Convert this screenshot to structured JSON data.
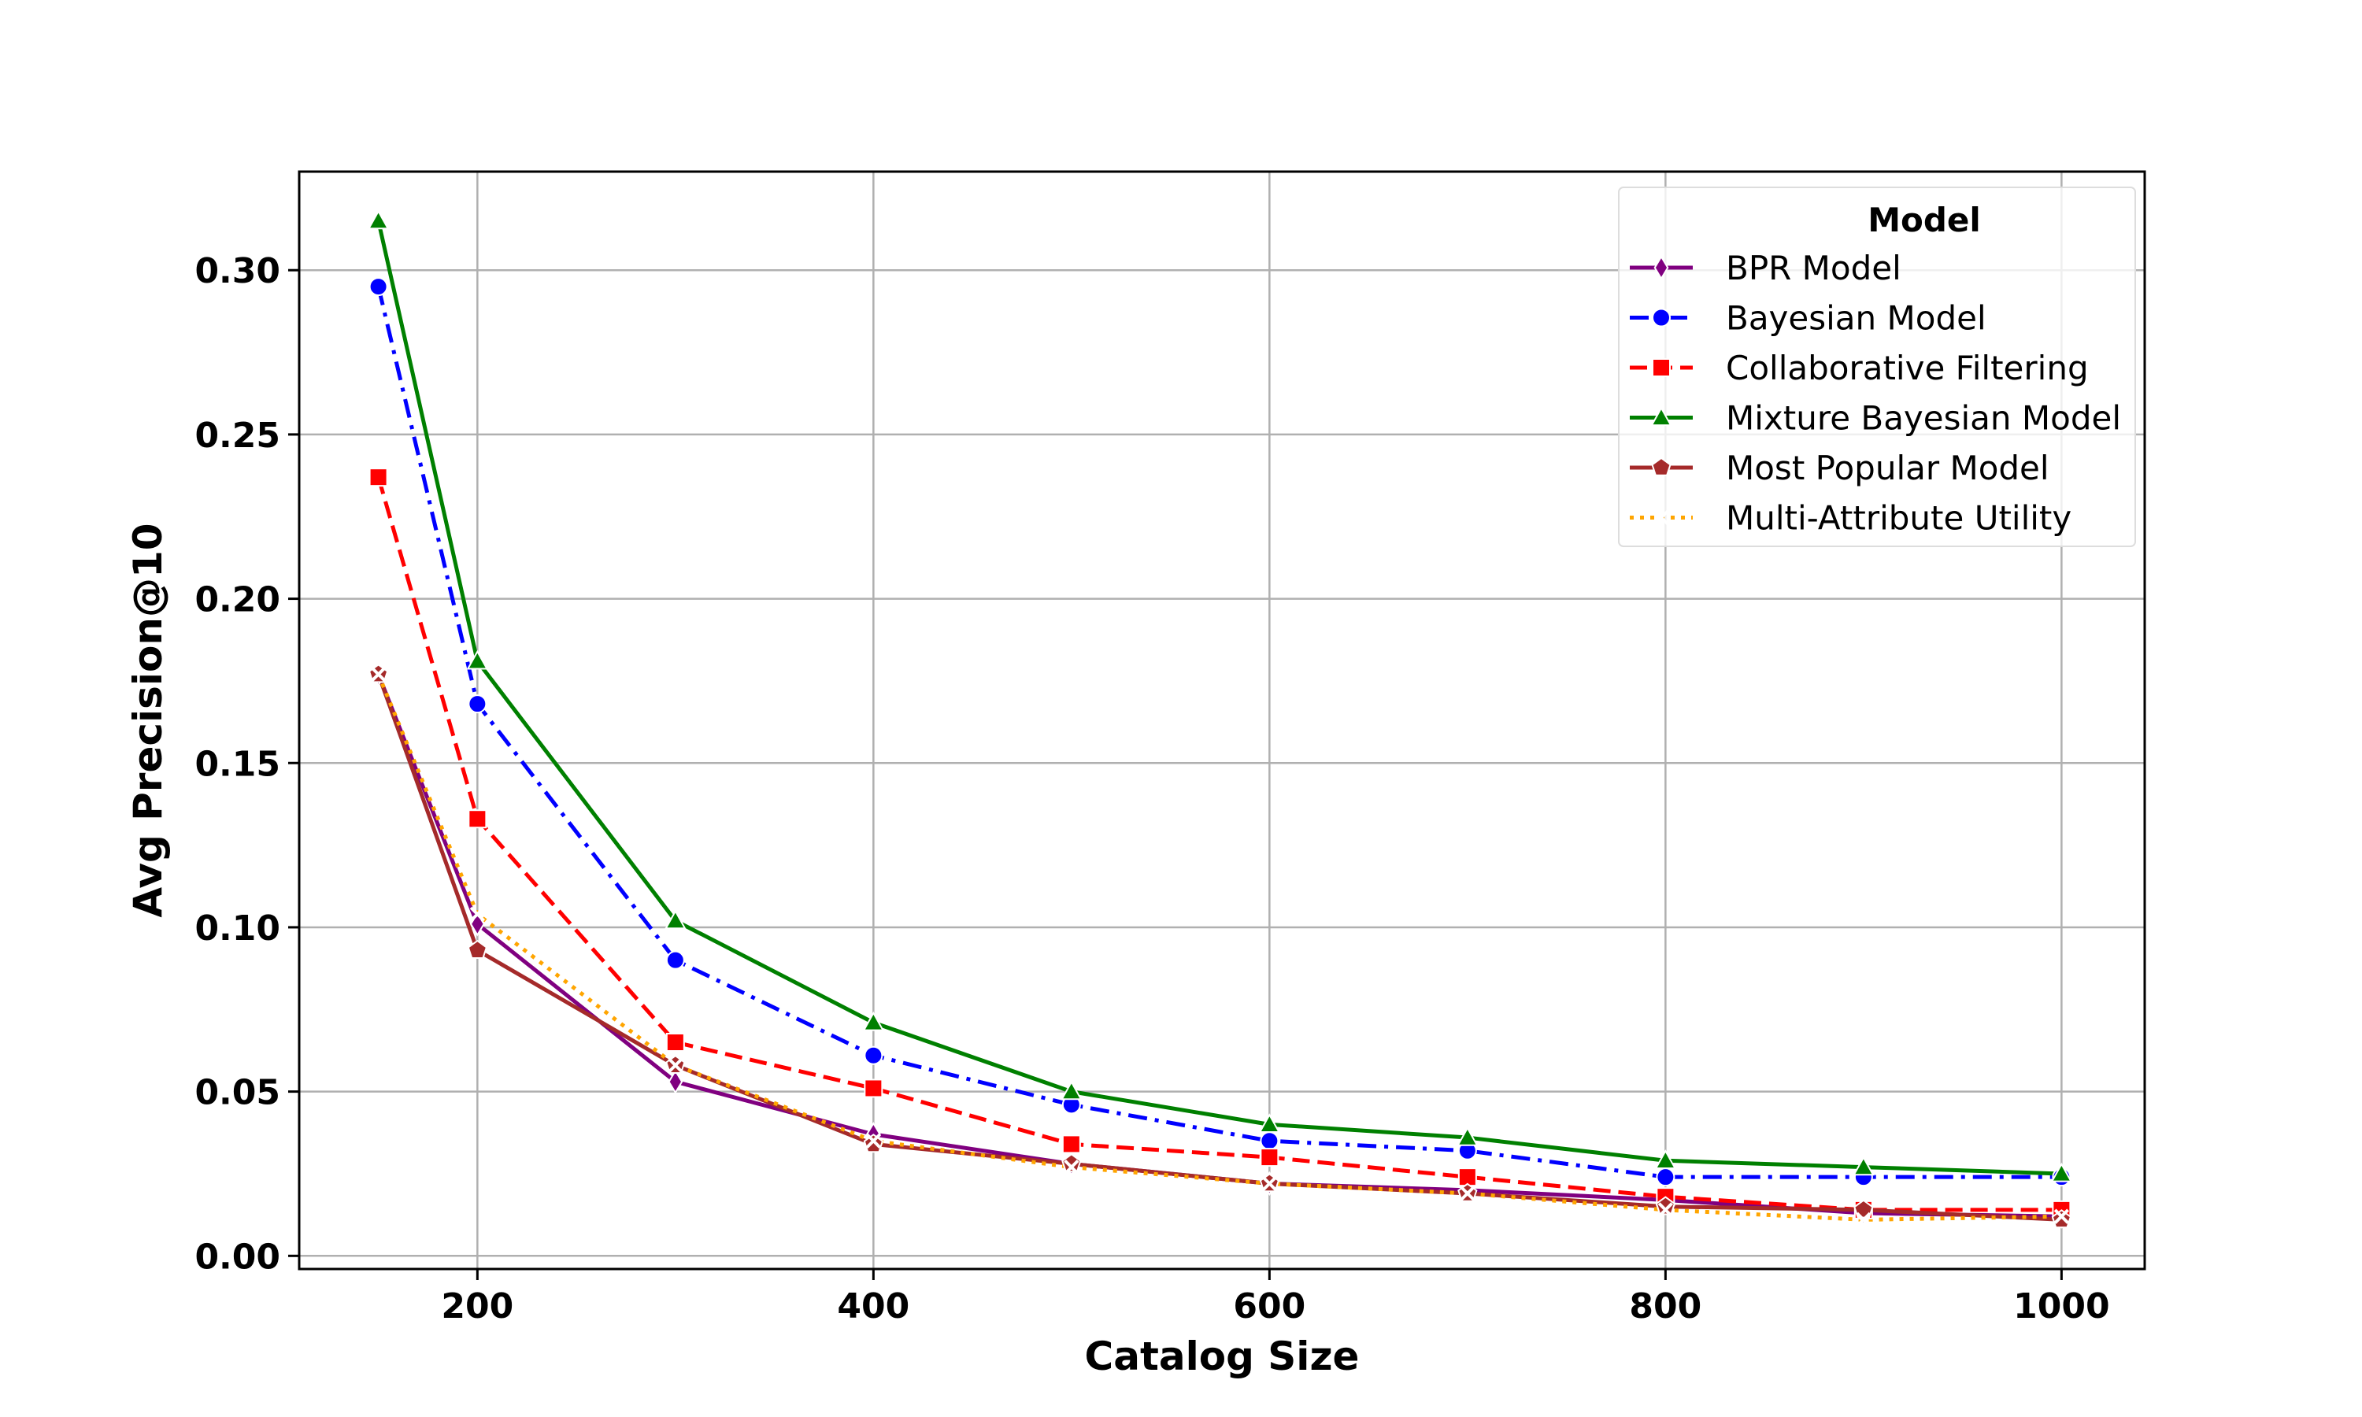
{
  "chart_data": {
    "type": "line",
    "title": "",
    "xlabel": "Catalog Size",
    "ylabel": "Avg Precision@10",
    "xlim": [
      110,
      1042
    ],
    "ylim": [
      -0.004,
      0.33
    ],
    "x_ticks": [
      200,
      400,
      600,
      800,
      1000
    ],
    "y_ticks": [
      0.0,
      0.05,
      0.1,
      0.15,
      0.2,
      0.25,
      0.3
    ],
    "x_tick_labels": [
      "200",
      "400",
      "600",
      "800",
      "1000"
    ],
    "y_tick_labels": [
      "0.00",
      "0.05",
      "0.10",
      "0.15",
      "0.20",
      "0.25",
      "0.30"
    ],
    "grid": true,
    "legend": {
      "title": "Model",
      "position": "top-right"
    },
    "x": [
      150,
      200,
      300,
      400,
      500,
      600,
      700,
      800,
      900,
      1000
    ],
    "series": [
      {
        "name": "BPR Model",
        "color": "#800080",
        "dash": "solid",
        "marker": "thin-diamond",
        "values": [
          0.177,
          0.101,
          0.053,
          0.037,
          0.028,
          0.022,
          0.02,
          0.017,
          0.013,
          0.012
        ]
      },
      {
        "name": "Bayesian Model",
        "color": "#0000ff",
        "dash": "dashdot",
        "marker": "circle",
        "values": [
          0.295,
          0.168,
          0.09,
          0.061,
          0.046,
          0.035,
          0.032,
          0.024,
          0.024,
          0.024
        ]
      },
      {
        "name": "Collaborative Filtering",
        "color": "#ff0000",
        "dash": "dashed",
        "marker": "square",
        "values": [
          0.237,
          0.133,
          0.065,
          0.051,
          0.034,
          0.03,
          0.024,
          0.018,
          0.014,
          0.014
        ]
      },
      {
        "name": "Mixture Bayesian Model",
        "color": "#008000",
        "dash": "solid",
        "marker": "triangle",
        "values": [
          0.315,
          0.181,
          0.102,
          0.071,
          0.05,
          0.04,
          0.036,
          0.029,
          0.027,
          0.025
        ]
      },
      {
        "name": "Most Popular Model",
        "color": "#a52a2a",
        "dash": "solid",
        "marker": "pentagon",
        "values": [
          0.177,
          0.093,
          0.058,
          0.034,
          0.028,
          0.022,
          0.019,
          0.015,
          0.014,
          0.011
        ]
      },
      {
        "name": "Multi-Attribute Utility",
        "color": "#ffa500",
        "dash": "dotted",
        "marker": "x",
        "values": [
          0.177,
          0.104,
          0.058,
          0.035,
          0.027,
          0.022,
          0.019,
          0.014,
          0.011,
          0.012
        ]
      }
    ]
  }
}
